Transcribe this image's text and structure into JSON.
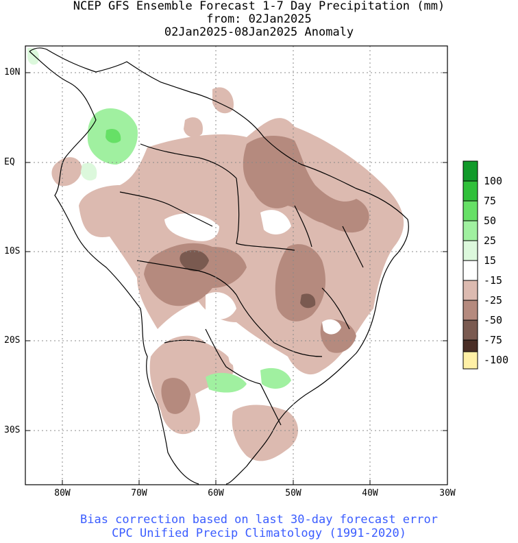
{
  "title": {
    "line1": "NCEP GFS Ensemble Forecast 1-7 Day Precipitation (mm)",
    "line2": "from: 02Jan2025",
    "line3": "02Jan2025-08Jan2025 Anomaly"
  },
  "axes": {
    "lat_labels": [
      "10N",
      "EQ",
      "10S",
      "20S",
      "30S"
    ],
    "lon_labels": [
      "80W",
      "70W",
      "60W",
      "50W",
      "40W",
      "30W"
    ]
  },
  "legend": {
    "labels": [
      "100",
      "75",
      "50",
      "25",
      "15",
      "-15",
      "-25",
      "-50",
      "-75",
      "-100"
    ],
    "colors": [
      "#119a2a",
      "#30c03a",
      "#66e066",
      "#a0f0a0",
      "#dcf8dc",
      "#ffffff",
      "#dcbab0",
      "#b58a7e",
      "#7a5a50",
      "#4a2e26",
      "#fff0a6"
    ]
  },
  "footer": {
    "line1": "Bias correction based on last 30-day forecast error",
    "line2": "CPC Unified Precip Climatology (1991-2020)"
  }
}
